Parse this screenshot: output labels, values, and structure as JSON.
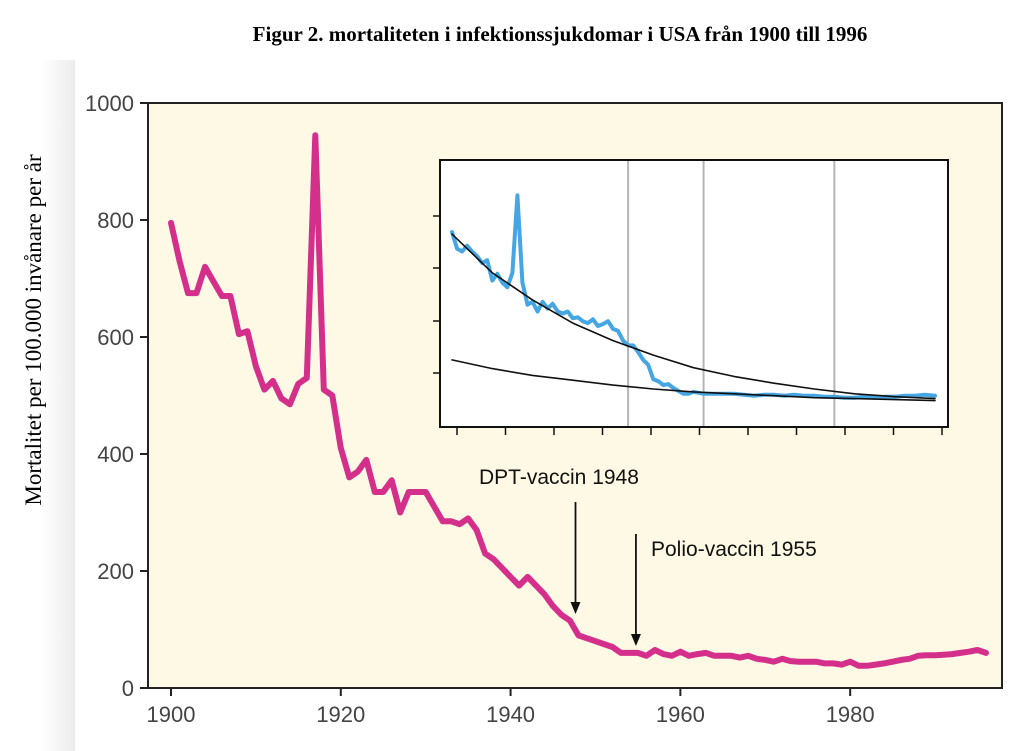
{
  "figure_title": "Figur 2. mortaliteten i infektionssjukdomar i USA från 1900 till 1996",
  "colors": {
    "plot_background": "#fdf9e4",
    "main_series": "#d42f8b",
    "inset_series": "#45a6e3",
    "inset_trend": "#111111",
    "vertical_marker": "#b5b5b5"
  },
  "chart_data": [
    {
      "type": "line",
      "title": "Figur 2. mortaliteten i infektionssjukdomar i USA från 1900 till 1996",
      "xlabel": "",
      "ylabel": "Mortalitet per 100.000 invånare per år",
      "xlim": [
        1900,
        1996
      ],
      "ylim": [
        0,
        1000
      ],
      "grid": false,
      "x_ticks": [
        1900,
        1920,
        1940,
        1960,
        1980
      ],
      "y_ticks": [
        0,
        200,
        400,
        600,
        800,
        1000
      ],
      "series": [
        {
          "name": "Mortalitet",
          "x": [
            1900,
            1901,
            1902,
            1903,
            1904,
            1905,
            1906,
            1907,
            1908,
            1909,
            1910,
            1911,
            1912,
            1913,
            1914,
            1915,
            1916,
            1917,
            1918,
            1919,
            1920,
            1921,
            1922,
            1923,
            1924,
            1925,
            1926,
            1927,
            1928,
            1929,
            1930,
            1931,
            1932,
            1933,
            1934,
            1935,
            1936,
            1937,
            1938,
            1939,
            1940,
            1941,
            1942,
            1943,
            1944,
            1945,
            1946,
            1947,
            1948,
            1949,
            1950,
            1951,
            1952,
            1953,
            1954,
            1955,
            1956,
            1957,
            1958,
            1959,
            1960,
            1961,
            1962,
            1963,
            1964,
            1965,
            1966,
            1967,
            1968,
            1969,
            1970,
            1971,
            1972,
            1973,
            1974,
            1975,
            1976,
            1977,
            1978,
            1979,
            1980,
            1981,
            1982,
            1983,
            1984,
            1985,
            1986,
            1987,
            1988,
            1989,
            1990,
            1991,
            1992,
            1993,
            1994,
            1995,
            1996
          ],
          "values": [
            795,
            730,
            675,
            675,
            720,
            695,
            670,
            670,
            605,
            610,
            550,
            510,
            525,
            495,
            485,
            520,
            530,
            945,
            510,
            500,
            410,
            360,
            370,
            390,
            335,
            335,
            355,
            300,
            335,
            335,
            335,
            310,
            285,
            285,
            280,
            290,
            270,
            230,
            220,
            205,
            190,
            175,
            190,
            175,
            160,
            140,
            125,
            115,
            90,
            85,
            80,
            75,
            70,
            60,
            60,
            60,
            55,
            65,
            58,
            55,
            62,
            55,
            58,
            60,
            55,
            55,
            55,
            52,
            55,
            50,
            48,
            45,
            50,
            46,
            45,
            45,
            45,
            42,
            42,
            40,
            45,
            38,
            38,
            40,
            42,
            45,
            48,
            50,
            55,
            56,
            56,
            57,
            58,
            60,
            62,
            65,
            60
          ],
          "color": "#d42f8b"
        }
      ],
      "annotations": [
        {
          "text": "DPT-vaccin 1948",
          "x": 1948
        },
        {
          "text": "Polio-vaccin 1955",
          "x": 1955
        }
      ]
    },
    {
      "type": "line",
      "title": "",
      "xlabel": "",
      "ylabel": "",
      "xlim": [
        0,
        96
      ],
      "ylim": [
        0,
        250
      ],
      "grid": false,
      "vertical_markers": [
        35,
        50,
        76
      ],
      "series": [
        {
          "name": "inset-series",
          "x": [
            0,
            1,
            2,
            3,
            4,
            5,
            6,
            7,
            8,
            9,
            10,
            11,
            12,
            13,
            14,
            15,
            16,
            17,
            18,
            19,
            20,
            21,
            22,
            23,
            24,
            25,
            26,
            27,
            28,
            29,
            30,
            31,
            32,
            33,
            34,
            35,
            36,
            37,
            38,
            39,
            40,
            41,
            42,
            43,
            44,
            45,
            46,
            47,
            48,
            49,
            50,
            52,
            54,
            56,
            58,
            60,
            62,
            64,
            66,
            68,
            70,
            72,
            74,
            76,
            78,
            80,
            82,
            84,
            86,
            88,
            90,
            92,
            94,
            96
          ],
          "values": [
            192,
            175,
            172,
            178,
            172,
            167,
            160,
            163,
            142,
            149,
            140,
            135,
            150,
            230,
            140,
            117,
            120,
            110,
            120,
            113,
            118,
            110,
            108,
            110,
            103,
            104,
            100,
            98,
            102,
            95,
            97,
            100,
            92,
            90,
            80,
            75,
            75,
            68,
            60,
            55,
            40,
            38,
            34,
            35,
            31,
            28,
            25,
            25,
            27,
            26,
            25,
            25,
            25,
            25,
            24,
            23,
            24,
            24,
            23,
            24,
            23,
            23,
            22,
            22,
            21,
            21,
            22,
            21,
            22,
            22,
            23,
            23,
            24,
            23
          ],
          "color": "#45a6e3"
        },
        {
          "name": "inset-trend-upper",
          "x": [
            0,
            8,
            16,
            24,
            32,
            40,
            48,
            56,
            64,
            72,
            80,
            88,
            96
          ],
          "values": [
            190,
            150,
            122,
            98,
            80,
            65,
            52,
            43,
            36,
            30,
            25,
            22,
            20
          ],
          "color": "#111111"
        },
        {
          "name": "inset-trend-lower",
          "x": [
            0,
            8,
            16,
            24,
            32,
            40,
            48,
            56,
            64,
            72,
            80,
            88,
            96
          ],
          "values": [
            60,
            51,
            44,
            39,
            34,
            30,
            27,
            25,
            23,
            21,
            20,
            19,
            18
          ],
          "color": "#111111"
        }
      ]
    }
  ]
}
